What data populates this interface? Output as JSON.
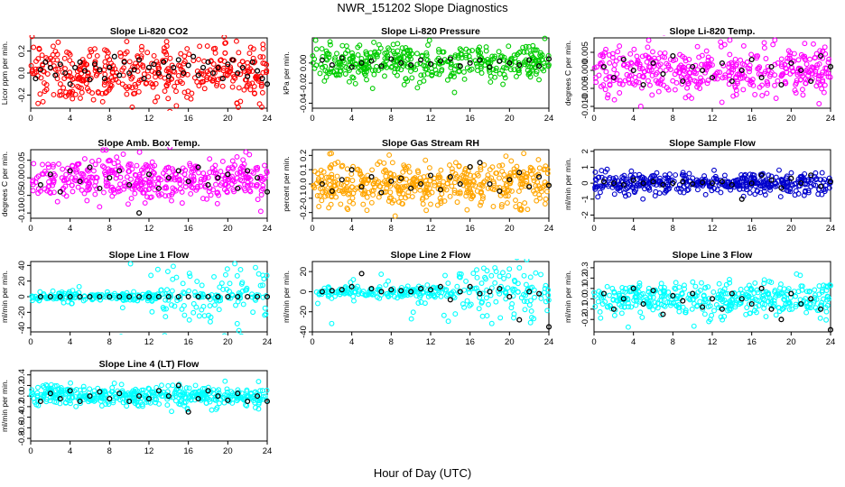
{
  "figure": {
    "title": "NWR_151202  Slope Diagnostics",
    "xlabel": "Hour of Day (UTC)"
  },
  "chart_data": [
    {
      "type": "scatter",
      "title": "Slope Li-820 CO2",
      "ylabel": "Licor ppm per min.",
      "xlim": [
        0,
        24
      ],
      "ylim": [
        -0.32,
        0.32
      ],
      "xticks": [
        0,
        4,
        8,
        12,
        16,
        20,
        24
      ],
      "yticks": [
        -0.2,
        0.0,
        0.2
      ],
      "ytick_labels": [
        "-0.2",
        "0.0",
        "0.2"
      ],
      "point_color": "#ff0000",
      "spread": 0.13,
      "series": [
        {
          "name": "all",
          "hour_range": [
            0,
            24
          ],
          "n": 420
        },
        {
          "name": "hourly",
          "x": [
            0.5,
            1,
            1.5,
            2,
            2.5,
            3,
            3.5,
            4,
            4.5,
            5,
            5.5,
            6,
            6.5,
            7,
            7.5,
            8,
            8.5,
            9,
            9.5,
            10,
            10.5,
            11,
            11.5,
            12,
            12.5,
            13,
            13.5,
            14,
            14.5,
            15,
            15.5,
            16,
            16.5,
            17,
            17.5,
            18,
            18.5,
            19,
            19.5,
            20,
            20.5,
            21,
            21.5,
            22,
            22.5,
            23,
            23.5,
            24
          ],
          "y": [
            -0.05,
            0.03,
            0.1,
            0.05,
            -0.02,
            0.08,
            0.0,
            -0.1,
            0.05,
            0.1,
            0.02,
            -0.06,
            0.08,
            0.03,
            -0.05,
            0.05,
            0.15,
            -0.02,
            0.1,
            0.0,
            0.03,
            0.12,
            -0.05,
            0.05,
            0.08,
            0.0,
            0.1,
            -0.03,
            0.05,
            0.12,
            0.0,
            0.07,
            0.15,
            -0.02,
            0.05,
            0.1,
            0.0,
            0.05,
            -0.05,
            0.08,
            0.12,
            0.0,
            0.05,
            -0.03,
            0.1,
            0.02,
            -0.05,
            -0.1
          ]
        }
      ]
    },
    {
      "type": "scatter",
      "title": "Slope Li-820 Pressure",
      "ylabel": "kPa per min.",
      "xlim": [
        0,
        24
      ],
      "ylim": [
        -0.045,
        0.025
      ],
      "xticks": [
        0,
        4,
        8,
        12,
        16,
        20,
        24
      ],
      "yticks": [
        -0.04,
        -0.02,
        0.0
      ],
      "ytick_labels": [
        "-0.04",
        "-0.02",
        "0.00"
      ],
      "point_color": "#00cc00",
      "spread": 0.009,
      "series": [
        {
          "name": "all",
          "hour_range": [
            0,
            24
          ],
          "n": 420
        },
        {
          "name": "hourly",
          "x": [
            1,
            2,
            3,
            4,
            5,
            6,
            7,
            8,
            9,
            10,
            11,
            12,
            13,
            14,
            15,
            16,
            17,
            18,
            19,
            20,
            21,
            22,
            23,
            24
          ],
          "y": [
            0.003,
            -0.002,
            0.005,
            -0.004,
            0.0,
            0.002,
            -0.003,
            0.004,
            0.0,
            -0.002,
            0.003,
            -0.001,
            0.002,
            0.004,
            -0.003,
            0.0,
            0.003,
            -0.004,
            0.002,
            0.0,
            -0.002,
            0.003,
            -0.003,
            0.004
          ]
        }
      ]
    },
    {
      "type": "scatter",
      "title": "Slope Li-820 Temp.",
      "ylabel": "degrees C per min.",
      "xlim": [
        0,
        24
      ],
      "ylim": [
        -0.0105,
        0.009
      ],
      "xticks": [
        0,
        4,
        8,
        12,
        16,
        20,
        24
      ],
      "yticks": [
        -0.01,
        -0.005,
        0.0,
        0.005
      ],
      "ytick_labels": [
        "-0.010",
        "-0.005",
        "0.000",
        "0.005"
      ],
      "point_color": "#ff00ff",
      "spread": 0.0035,
      "series": [
        {
          "name": "all",
          "hour_range": [
            0,
            24
          ],
          "n": 420
        },
        {
          "name": "hourly",
          "x": [
            1,
            2,
            3,
            4,
            5,
            6,
            7,
            8,
            9,
            10,
            11,
            12,
            13,
            14,
            15,
            16,
            17,
            18,
            19,
            20,
            21,
            22,
            23,
            24
          ],
          "y": [
            0.001,
            -0.002,
            0.003,
            0.0,
            -0.004,
            0.002,
            -0.001,
            0.004,
            -0.003,
            0.001,
            0.0,
            -0.002,
            0.002,
            -0.003,
            0.0,
            0.003,
            -0.002,
            0.001,
            -0.004,
            0.002,
            0.0,
            -0.003,
            0.004,
            0.001
          ]
        }
      ]
    },
    {
      "type": "scatter",
      "title": "Slope Amb. Box Temp.",
      "ylabel": "degrees C per min.",
      "xlim": [
        0,
        24
      ],
      "ylim": [
        -0.115,
        0.08
      ],
      "xticks": [
        0,
        4,
        8,
        12,
        16,
        20,
        24
      ],
      "yticks": [
        -0.1,
        -0.05,
        0.0,
        0.05
      ],
      "ytick_labels": [
        "-0.10",
        "-0.05",
        "0.00",
        "0.05"
      ],
      "point_color": "#ff00ff",
      "spread": 0.03,
      "series": [
        {
          "name": "all",
          "hour_range": [
            0,
            24
          ],
          "n": 420
        },
        {
          "name": "hourly",
          "x": [
            1,
            2,
            3,
            4,
            5,
            6,
            7,
            8,
            9,
            10,
            11,
            12,
            13,
            14,
            15,
            16,
            17,
            18,
            19,
            20,
            21,
            22,
            23,
            24
          ],
          "y": [
            -0.02,
            0.01,
            -0.04,
            0.02,
            -0.01,
            0.03,
            -0.03,
            0.0,
            0.02,
            -0.02,
            -0.1,
            0.01,
            -0.03,
            0.0,
            0.02,
            -0.01,
            0.03,
            -0.02,
            0.0,
            0.01,
            -0.03,
            0.02,
            0.0,
            -0.04
          ]
        }
      ]
    },
    {
      "type": "scatter",
      "title": "Slope Gas Stream RH",
      "ylabel": "percent per min.",
      "xlim": [
        0,
        24
      ],
      "ylim": [
        -0.24,
        0.24
      ],
      "xticks": [
        0,
        4,
        8,
        12,
        16,
        20,
        24
      ],
      "yticks": [
        -0.2,
        -0.1,
        0.0,
        0.1,
        0.2
      ],
      "ytick_labels": [
        "-0.2",
        "-0.1",
        "0.0",
        "0.1",
        "0.2"
      ],
      "point_color": "#ffa500",
      "spread": 0.08,
      "series": [
        {
          "name": "all",
          "hour_range": [
            0,
            24
          ],
          "n": 480
        },
        {
          "name": "hourly",
          "x": [
            1,
            2,
            3,
            4,
            5,
            6,
            7,
            8,
            9,
            10,
            11,
            12,
            13,
            14,
            15,
            16,
            17,
            18,
            19,
            20,
            21,
            22,
            23,
            24
          ],
          "y": [
            0.0,
            -0.05,
            0.03,
            0.1,
            -0.02,
            0.05,
            -0.06,
            0.02,
            0.04,
            -0.03,
            0.0,
            0.06,
            -0.04,
            0.05,
            0.0,
            0.12,
            0.15,
            0.0,
            -0.05,
            0.03,
            0.08,
            -0.02,
            0.05,
            -0.01
          ]
        }
      ]
    },
    {
      "type": "scatter",
      "title": "Slope Sample Flow",
      "ylabel": "ml/min per min.",
      "xlim": [
        0,
        24
      ],
      "ylim": [
        -2.2,
        2.1
      ],
      "xticks": [
        0,
        4,
        8,
        12,
        16,
        20,
        24
      ],
      "yticks": [
        -2,
        -1,
        0,
        1,
        2
      ],
      "ytick_labels": [
        "-2",
        "-1",
        "0",
        "1",
        "2"
      ],
      "point_color": "#0000cc",
      "spread": 0.35,
      "series": [
        {
          "name": "all",
          "hour_range": [
            0,
            24
          ],
          "n": 420
        },
        {
          "name": "hourly",
          "x": [
            1,
            2,
            3,
            4,
            5,
            6,
            7,
            8,
            9,
            10,
            11,
            12,
            13,
            14,
            15,
            16,
            17,
            18,
            19,
            20,
            21,
            22,
            23,
            24
          ],
          "y": [
            0.1,
            0.0,
            -0.1,
            0.2,
            0.0,
            0.1,
            -0.1,
            0.0,
            0.1,
            -0.05,
            0.05,
            0.0,
            0.1,
            -0.1,
            -1.0,
            0.0,
            0.5,
            0.2,
            -0.3,
            0.3,
            0.0,
            0.5,
            -0.2,
            0.1
          ]
        }
      ]
    },
    {
      "type": "scatter",
      "title": "Slope Line 1 Flow",
      "ylabel": "ml/min per min.",
      "xlim": [
        0,
        24
      ],
      "ylim": [
        -45,
        45
      ],
      "xticks": [
        0,
        4,
        8,
        12,
        16,
        20,
        24
      ],
      "yticks": [
        -40,
        -20,
        0,
        20,
        40
      ],
      "ytick_labels": [
        "-40",
        "-20",
        "0",
        "20",
        "40"
      ],
      "point_color": "#00ffff",
      "spread": 3,
      "series": [
        {
          "name": "all",
          "hour_range": [
            0,
            24
          ],
          "n": 300
        },
        {
          "name": "hourly",
          "x": [
            1,
            2,
            3,
            4,
            5,
            6,
            7,
            8,
            9,
            10,
            11,
            12,
            13,
            14,
            15,
            16,
            17,
            18,
            19,
            20,
            21,
            22,
            23,
            24
          ],
          "y": [
            0,
            0,
            0,
            0,
            0,
            0,
            0,
            0,
            0,
            0,
            0,
            0,
            0,
            0,
            0,
            0,
            0,
            0,
            0,
            0,
            0,
            0,
            0,
            0
          ]
        }
      ]
    },
    {
      "type": "scatter",
      "title": "Slope Line 2 Flow",
      "ylabel": "ml/min per min.",
      "xlim": [
        0,
        24
      ],
      "ylim": [
        -40,
        30
      ],
      "xticks": [
        0,
        4,
        8,
        12,
        16,
        20,
        24
      ],
      "yticks": [
        -40,
        -20,
        0,
        20
      ],
      "ytick_labels": [
        "-40",
        "-20",
        "0",
        "20"
      ],
      "point_color": "#00ffff",
      "spread": 3,
      "series": [
        {
          "name": "all",
          "hour_range": [
            0,
            24
          ],
          "n": 300
        },
        {
          "name": "hourly",
          "x": [
            1,
            2,
            3,
            4,
            5,
            6,
            7,
            8,
            9,
            10,
            11,
            12,
            13,
            14,
            15,
            16,
            17,
            18,
            19,
            20,
            21,
            22,
            23,
            24
          ],
          "y": [
            0,
            1,
            2,
            5,
            18,
            3,
            0,
            2,
            1,
            0,
            3,
            2,
            5,
            -8,
            0,
            5,
            -2,
            0,
            3,
            -5,
            -28,
            0,
            -2,
            -35
          ]
        }
      ]
    },
    {
      "type": "scatter",
      "title": "Slope Line 3 Flow",
      "ylabel": "ml/min per min.",
      "xlim": [
        0,
        24
      ],
      "ylim": [
        -0.32,
        0.36
      ],
      "xticks": [
        0,
        4,
        8,
        12,
        16,
        20,
        24
      ],
      "yticks": [
        -0.2,
        -0.1,
        0.0,
        0.1,
        0.2,
        0.3
      ],
      "ytick_labels": [
        "-0.2",
        "-0.1",
        "0.0",
        "0.1",
        "0.2",
        "0.3"
      ],
      "point_color": "#00ffff",
      "spread": 0.08,
      "series": [
        {
          "name": "all",
          "hour_range": [
            0,
            24
          ],
          "n": 420
        },
        {
          "name": "hourly",
          "x": [
            1,
            2,
            3,
            4,
            5,
            6,
            7,
            8,
            9,
            10,
            11,
            12,
            13,
            14,
            15,
            16,
            17,
            18,
            19,
            20,
            21,
            22,
            23,
            24
          ],
          "y": [
            0.05,
            -0.1,
            0.0,
            0.1,
            -0.05,
            0.08,
            -0.15,
            0.03,
            -0.02,
            0.05,
            -0.08,
            0.0,
            -0.1,
            0.05,
            0.0,
            -0.05,
            0.1,
            -0.1,
            -0.2,
            0.05,
            -0.05,
            0.0,
            -0.1,
            -0.3
          ]
        }
      ]
    },
    {
      "type": "scatter",
      "title": "Slope Line 4 (LT) Flow",
      "ylabel": "ml/min per min.",
      "xlim": [
        0,
        24
      ],
      "ylim": [
        -0.85,
        0.48
      ],
      "xticks": [
        0,
        4,
        8,
        12,
        16,
        20,
        24
      ],
      "yticks": [
        -0.8,
        -0.6,
        -0.4,
        -0.2,
        0.0,
        0.2,
        0.4
      ],
      "ytick_labels": [
        "-0.8",
        "-0.6",
        "-0.4",
        "-0.2",
        "0.0",
        "0.2",
        "0.4"
      ],
      "point_color": "#00ffff",
      "spread": 0.1,
      "series": [
        {
          "name": "all",
          "hour_range": [
            0,
            24
          ],
          "n": 420
        },
        {
          "name": "hourly",
          "x": [
            1,
            2,
            3,
            4,
            5,
            6,
            7,
            8,
            9,
            10,
            11,
            12,
            13,
            14,
            15,
            16,
            17,
            18,
            19,
            20,
            21,
            22,
            23,
            24
          ],
          "y": [
            -0.1,
            0.05,
            -0.05,
            0.1,
            -0.1,
            0.0,
            0.08,
            -0.05,
            0.05,
            -0.1,
            0.0,
            -0.05,
            0.1,
            0.0,
            0.2,
            -0.3,
            -0.05,
            0.1,
            0.0,
            -0.08,
            0.05,
            -0.1,
            0.0,
            -0.1
          ]
        }
      ]
    }
  ]
}
